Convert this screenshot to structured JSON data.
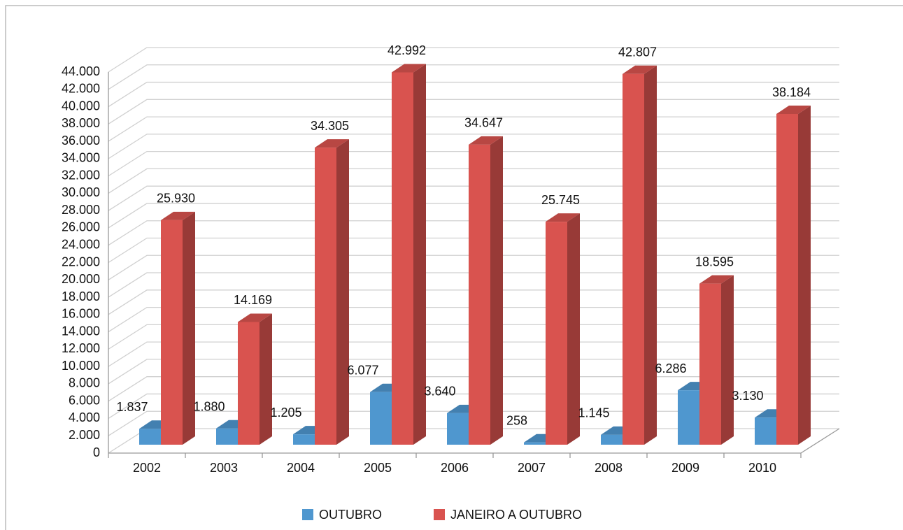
{
  "chart_data": {
    "type": "bar3d",
    "categories": [
      "2002",
      "2003",
      "2004",
      "2005",
      "2006",
      "2007",
      "2008",
      "2009",
      "2010"
    ],
    "series": [
      {
        "name": "OUTUBRO",
        "color": "#4f97cf",
        "values": [
          1837,
          1880,
          1205,
          6077,
          3640,
          258,
          1145,
          6286,
          3130
        ],
        "value_labels": [
          "1.837",
          "1.880",
          "1.205",
          "6.077",
          "3.640",
          "258",
          "1.145",
          "6.286",
          "3.130"
        ]
      },
      {
        "name": "JANEIRO A OUTUBRO",
        "color": "#d9534f",
        "values": [
          25930,
          14169,
          34305,
          42992,
          34647,
          25745,
          42807,
          18595,
          38184
        ],
        "value_labels": [
          "25.930",
          "14.169",
          "34.305",
          "42.992",
          "34.647",
          "25.745",
          "42.807",
          "18.595",
          "38.184"
        ]
      }
    ],
    "ylim": [
      0,
      44000
    ],
    "yticks": [
      0,
      {
        "value": 2000,
        "label": "2.000"
      },
      {
        "value": 4000,
        "label": "4.000"
      },
      {
        "value": 6000,
        "label": "6.000"
      },
      {
        "value": 8000,
        "label": "8.000"
      },
      {
        "value": 10000,
        "label": "10.000"
      },
      {
        "value": 12000,
        "label": "12.000"
      },
      {
        "value": 14000,
        "label": "14.000"
      },
      {
        "value": 16000,
        "label": "16.000"
      },
      {
        "value": 18000,
        "label": "18.000"
      },
      {
        "value": 20000,
        "label": "20.000"
      },
      {
        "value": 22000,
        "label": "22.000"
      },
      {
        "value": 24000,
        "label": "24.000"
      },
      {
        "value": 26000,
        "label": "26.000"
      },
      {
        "value": 28000,
        "label": "28.000"
      },
      {
        "value": 30000,
        "label": "30.000"
      },
      {
        "value": 32000,
        "label": "32.000"
      },
      {
        "value": 34000,
        "label": "34.000"
      },
      {
        "value": 36000,
        "label": "36.000"
      },
      {
        "value": 38000,
        "label": "38.000"
      },
      {
        "value": 40000,
        "label": "40.000"
      },
      {
        "value": 42000,
        "label": "42.000"
      },
      {
        "value": 44000,
        "label": "44.000"
      }
    ],
    "grid": true,
    "legend": "bottom"
  }
}
